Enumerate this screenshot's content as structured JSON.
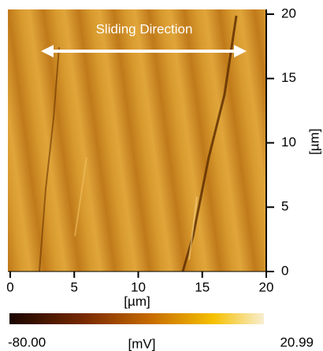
{
  "image": {
    "annotation": "Sliding Direction"
  },
  "x_axis": {
    "label": "[µm]",
    "lim": [
      0,
      20
    ],
    "ticks": [
      0,
      5,
      10,
      15,
      20
    ]
  },
  "y_axis": {
    "label": "[µm]",
    "lim": [
      0,
      20
    ],
    "ticks": [
      0,
      5,
      10,
      15,
      20
    ]
  },
  "colorbar": {
    "min_label": "-80.00",
    "max_label": "20.99",
    "unit": "[mV]"
  }
}
